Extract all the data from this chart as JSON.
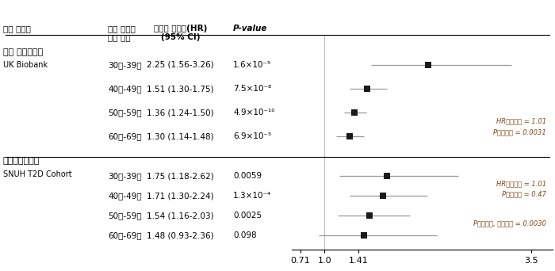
{
  "cohort1_label": "영국 바이오뱅크",
  "cohort1_sublabel": "UK Biobank",
  "cohort2_label": "서울대학교병원",
  "cohort2_sublabel": "SNUH T2D Cohort",
  "header_cohort": "연구 코호트",
  "header_age": "성인 당뇨병\n진단 연령",
  "header_hr": "상대적 위험도(HR)\n(95% CI)",
  "header_pval": "P-value",
  "rows": [
    {
      "age": "30세-39세",
      "hr": 2.25,
      "ci_low": 1.56,
      "ci_high": 3.26,
      "hr_text": "2.25 (1.56-3.26)",
      "pval": "1.6×10⁻⁵",
      "cohort": 1
    },
    {
      "age": "40세-49세",
      "hr": 1.51,
      "ci_low": 1.3,
      "ci_high": 1.75,
      "hr_text": "1.51 (1.30-1.75)",
      "pval": "7.5×10⁻⁸",
      "cohort": 1
    },
    {
      "age": "50세-59세",
      "hr": 1.36,
      "ci_low": 1.24,
      "ci_high": 1.5,
      "hr_text": "1.36 (1.24-1.50)",
      "pval": "4.9×10⁻¹⁰",
      "cohort": 1
    },
    {
      "age": "60세-69세",
      "hr": 1.3,
      "ci_low": 1.14,
      "ci_high": 1.48,
      "hr_text": "1.30 (1.14-1.48)",
      "pval": "6.9×10⁻⁵",
      "cohort": 1
    },
    {
      "age": "30세-39세",
      "hr": 1.75,
      "ci_low": 1.18,
      "ci_high": 2.62,
      "hr_text": "1.75 (1.18-2.62)",
      "pval": "0.0059",
      "cohort": 2
    },
    {
      "age": "40세-49세",
      "hr": 1.71,
      "ci_low": 1.3,
      "ci_high": 2.24,
      "hr_text": "1.71 (1.30-2.24)",
      "pval": "1.3×10⁻⁴",
      "cohort": 2
    },
    {
      "age": "50세-59세",
      "hr": 1.54,
      "ci_low": 1.16,
      "ci_high": 2.03,
      "hr_text": "1.54 (1.16-2.03)",
      "pval": "0.0025",
      "cohort": 2
    },
    {
      "age": "60세-69세",
      "hr": 1.48,
      "ci_low": 0.93,
      "ci_high": 2.36,
      "hr_text": "1.48 (0.93-2.36)",
      "pval": "0.098",
      "cohort": 2
    }
  ],
  "annot1_line1": "HR상호작용 = 1.01",
  "annot1_line2": "P상호작용 = 0.0031",
  "annot2_line1": "HR상호작용 = 1.01",
  "annot2_line2": "P상호작용 = 0.47",
  "annot3": "P상호작용, 메타분석 = 0.0030",
  "xaxis_ticks": [
    0.71,
    1.0,
    1.41,
    3.5
  ],
  "xaxis_labels": [
    "0.71",
    "1.0",
    "1.41",
    "3.5"
  ],
  "xmin": 0.6,
  "xmax": 3.75,
  "marker_color": "#1a1a1a",
  "line_color": "#999999",
  "annotation_color": "#8B4513",
  "background_color": "#ffffff"
}
